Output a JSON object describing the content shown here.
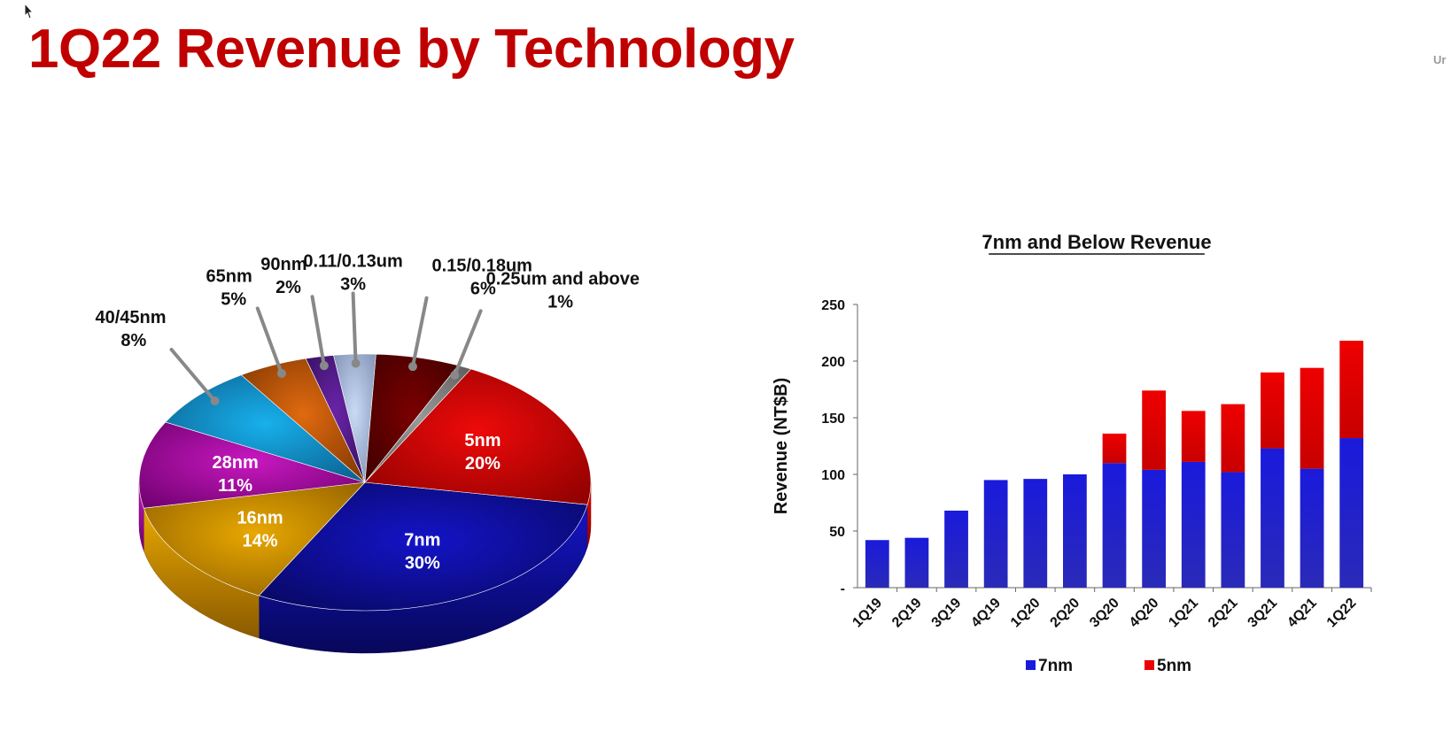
{
  "slide": {
    "title": "1Q22 Revenue by Technology",
    "corner_text": "Ur"
  },
  "colors": {
    "title": "#c00000",
    "7nm": "#1a1adc",
    "5nm": "#ee0000"
  },
  "chart_data": [
    {
      "type": "pie",
      "title": "",
      "slices": [
        {
          "label": "7nm",
          "value": 30,
          "text": "30%",
          "color": "#1414c8",
          "side": "#07075a"
        },
        {
          "label": "16nm",
          "value": 14,
          "text": "14%",
          "color": "#e8a800",
          "side": "#8a5a00"
        },
        {
          "label": "28nm",
          "value": 11,
          "text": "11%",
          "color": "#c818c0",
          "side": "#6a006a"
        },
        {
          "label": "40/45nm",
          "value": 8,
          "text": "8%",
          "color": "#18b0ec",
          "side": "#0a5a88"
        },
        {
          "label": "65nm",
          "value": 5,
          "text": "5%",
          "color": "#e06a10",
          "side": "#7a3400"
        },
        {
          "label": "90nm",
          "value": 2,
          "text": "2%",
          "color": "#6a24a8",
          "side": "#32105a"
        },
        {
          "label": "0.11/0.13um",
          "value": 3,
          "text": "3%",
          "color": "#c8daf4",
          "side": "#7a8ab0"
        },
        {
          "label": "0.15/0.18um",
          "value": 6,
          "text": "6%",
          "color": "#7a0000",
          "side": "#3a0000"
        },
        {
          "label": "0.25um and above",
          "value": 1,
          "text": "1%",
          "color": "#9a9a9a",
          "side": "#555555"
        },
        {
          "label": "5nm",
          "value": 20,
          "text": "20%",
          "color": "#ee0a0a",
          "side": "#8a0000"
        }
      ]
    },
    {
      "type": "bar",
      "stacked": true,
      "title": "7nm and Below Revenue",
      "xlabel": "",
      "ylabel": "Revenue (NT$B)",
      "ylim": [
        0,
        250
      ],
      "yticks": [
        0,
        50,
        100,
        150,
        200,
        250
      ],
      "ytick_labels": [
        "-",
        "50",
        "100",
        "150",
        "200",
        "250"
      ],
      "categories": [
        "1Q19",
        "2Q19",
        "3Q19",
        "4Q19",
        "1Q20",
        "2Q20",
        "3Q20",
        "4Q20",
        "1Q21",
        "2Q21",
        "3Q21",
        "4Q21",
        "1Q22"
      ],
      "series": [
        {
          "name": "7nm",
          "color": "#1a1adc",
          "values": [
            42,
            44,
            68,
            95,
            96,
            100,
            110,
            104,
            111,
            102,
            123,
            105,
            132
          ]
        },
        {
          "name": "5nm",
          "color": "#ee0000",
          "values": [
            0,
            0,
            0,
            0,
            0,
            0,
            26,
            70,
            45,
            60,
            67,
            89,
            86
          ]
        }
      ],
      "legend": "bottom"
    }
  ]
}
